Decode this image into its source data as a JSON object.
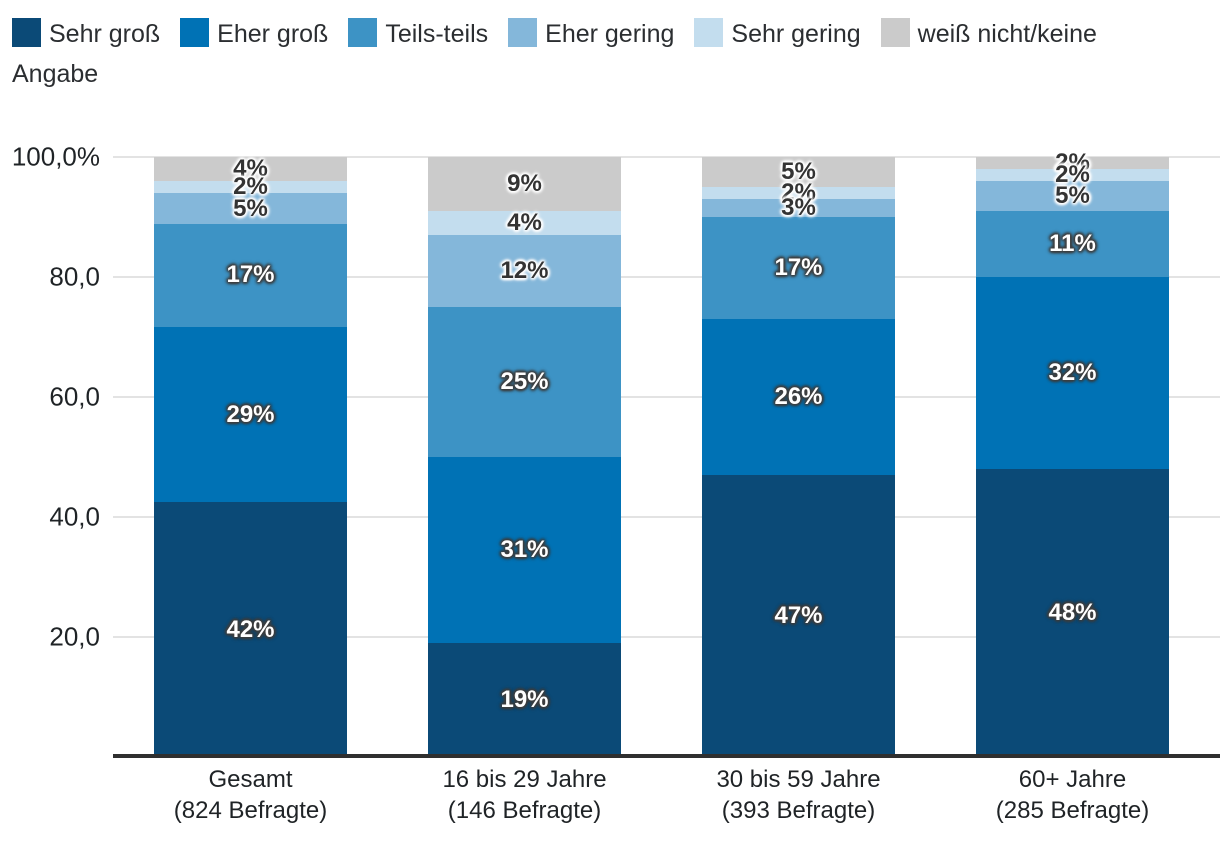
{
  "legend": {
    "items": [
      {
        "label": "Sehr groß",
        "color": "#0b4a77"
      },
      {
        "label": "Eher groß",
        "color": "#0072b5"
      },
      {
        "label": "Teils-teils",
        "color": "#3d93c5"
      },
      {
        "label": "Eher gering",
        "color": "#84b7da"
      },
      {
        "label": "Sehr gering",
        "color": "#c3ddee"
      },
      {
        "label": "weiß nicht/keine Angabe",
        "color": "#cbcbcb"
      }
    ]
  },
  "chart_data": {
    "type": "bar",
    "variant": "stacked-percent-column",
    "title": "",
    "legend_position": "top-left",
    "categories": [
      {
        "label": "Gesamt",
        "sublabel": "(824 Befragte)"
      },
      {
        "label": "16 bis 29 Jahre",
        "sublabel": "(146 Befragte)"
      },
      {
        "label": "30 bis 59 Jahre",
        "sublabel": "(393 Befragte)"
      },
      {
        "label": "60+ Jahre",
        "sublabel": "(285 Befragte)"
      }
    ],
    "series": [
      {
        "name": "Sehr groß",
        "color": "#0b4a77",
        "label_style": "light",
        "values": [
          42,
          19,
          47,
          48
        ]
      },
      {
        "name": "Eher groß",
        "color": "#0072b5",
        "label_style": "light",
        "values": [
          29,
          31,
          26,
          32
        ]
      },
      {
        "name": "Teils-teils",
        "color": "#3d93c5",
        "label_style": "light",
        "values": [
          17,
          25,
          17,
          11
        ]
      },
      {
        "name": "Eher gering",
        "color": "#84b7da",
        "label_style": "dark",
        "values": [
          5,
          12,
          3,
          5
        ]
      },
      {
        "name": "Sehr gering",
        "color": "#c3ddee",
        "label_style": "dark",
        "values": [
          2,
          4,
          2,
          2
        ]
      },
      {
        "name": "weiß nicht/keine Angabe",
        "color": "#cbcbcb",
        "label_style": "dark",
        "values": [
          4,
          9,
          5,
          2
        ]
      }
    ],
    "value_suffix": "%",
    "y_axis": {
      "tick_labels": [
        "100,0%",
        "80,0",
        "60,0",
        "40,0",
        "20,0"
      ],
      "tick_values": [
        100,
        80,
        60,
        40,
        20
      ],
      "min": 0,
      "max": 100,
      "grid": true
    }
  },
  "colors": {
    "grid": "#e3e3e3",
    "axis": "#2f2f2f",
    "text": "#1f2326",
    "legend_text": "#2b2e31",
    "background": "#ffffff"
  }
}
